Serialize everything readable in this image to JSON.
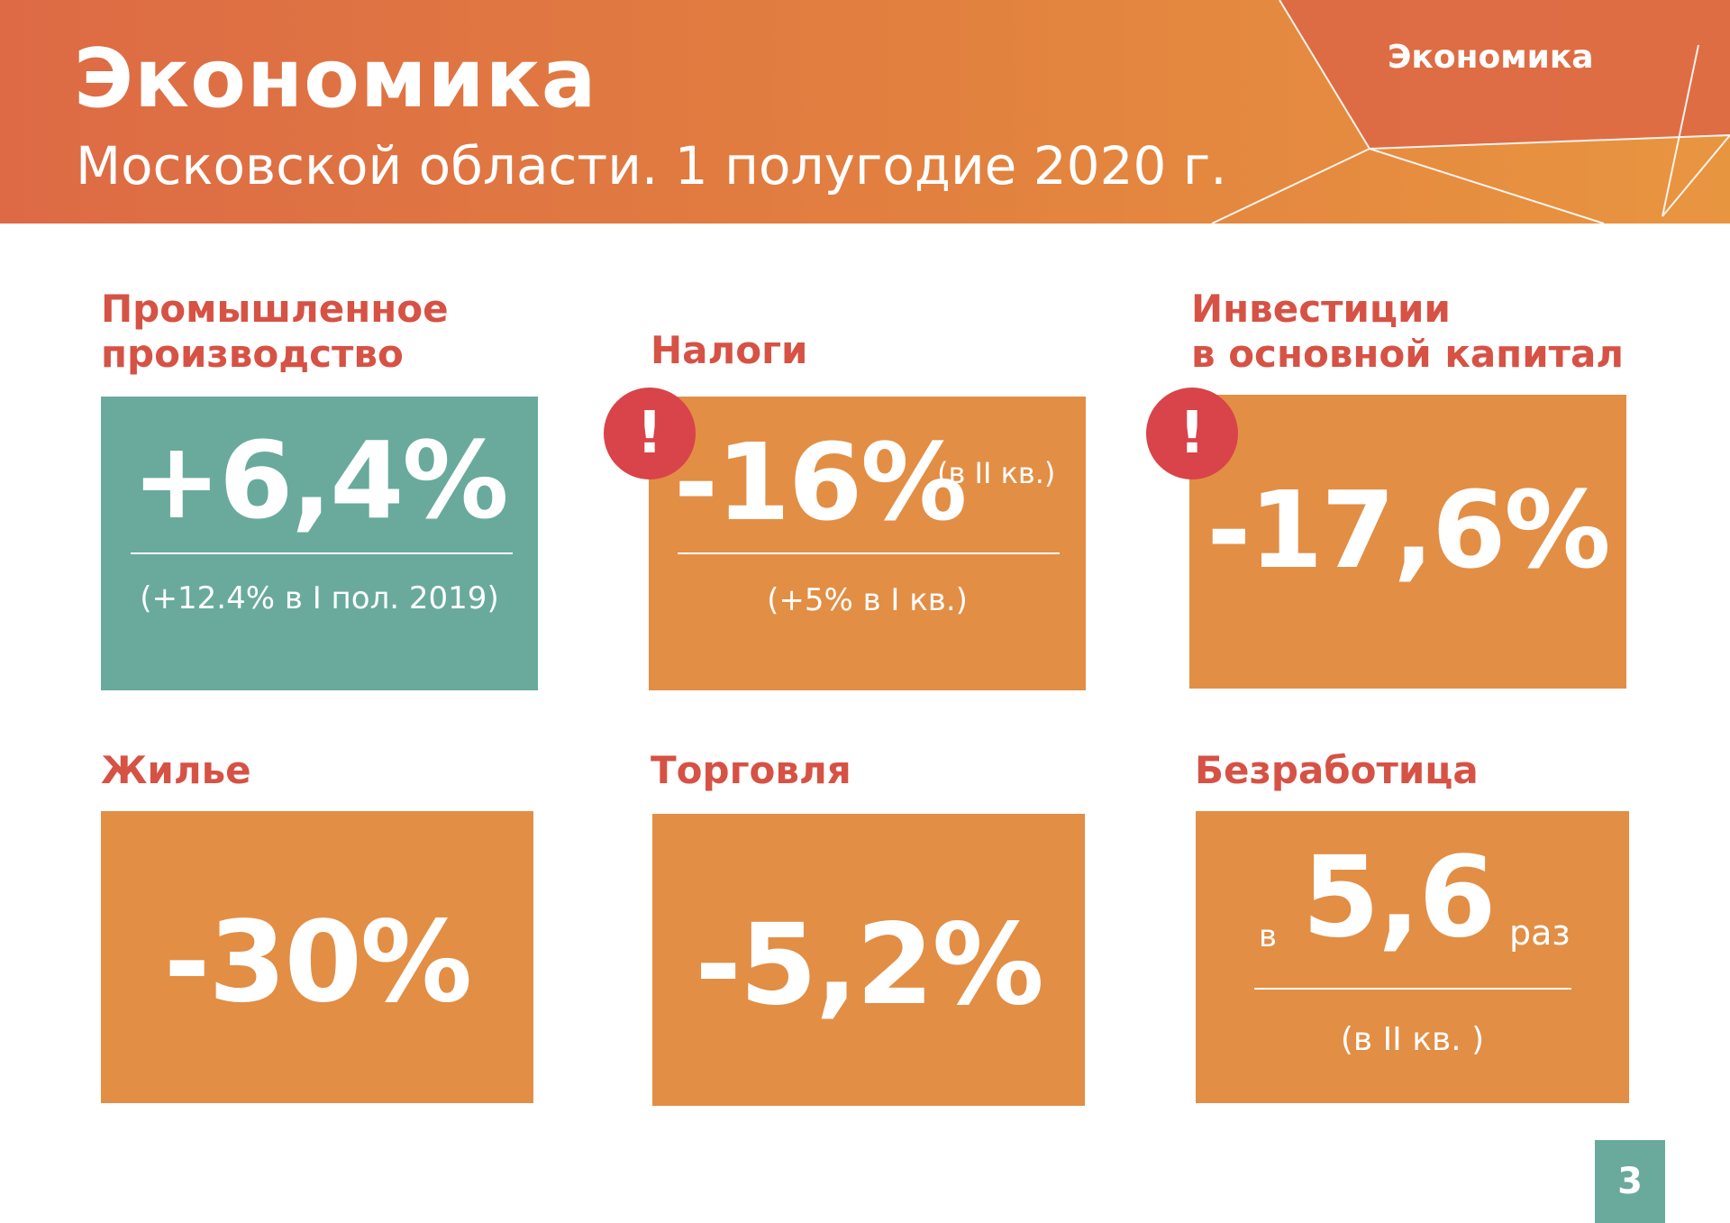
{
  "header": {
    "title": "Экономика",
    "subtitle": "Московской области. 1 полугодие 2020 г.",
    "section_tag": "Экономика"
  },
  "colors": {
    "header_orange": "#dd6a45",
    "card_orange": "#e28e45",
    "card_teal": "#69aa9d",
    "label_red": "#d65245",
    "alert_red": "#d9434a"
  },
  "cards": {
    "industry": {
      "label_line1": "Промышленное",
      "label_line2": "производство",
      "value": "+6,4%",
      "note": "(+12.4% в I пол. 2019)"
    },
    "taxes": {
      "label": "Налоги",
      "value": "-16%",
      "value_note": "(в II кв.)",
      "note": "(+5% в I кв.)",
      "alert": "!"
    },
    "investment": {
      "label_line1": "Инвестиции",
      "label_line2": "в основной капитал",
      "value": "-17,6%",
      "alert": "!"
    },
    "housing": {
      "label": "Жилье",
      "value": "-30%"
    },
    "trade": {
      "label": "Торговля",
      "value": "-5,2%"
    },
    "unemployment": {
      "label": "Безработица",
      "prefix": "в",
      "value": "5,6",
      "suffix": "раз",
      "note": "(в II кв. )"
    }
  },
  "page_number": "3"
}
